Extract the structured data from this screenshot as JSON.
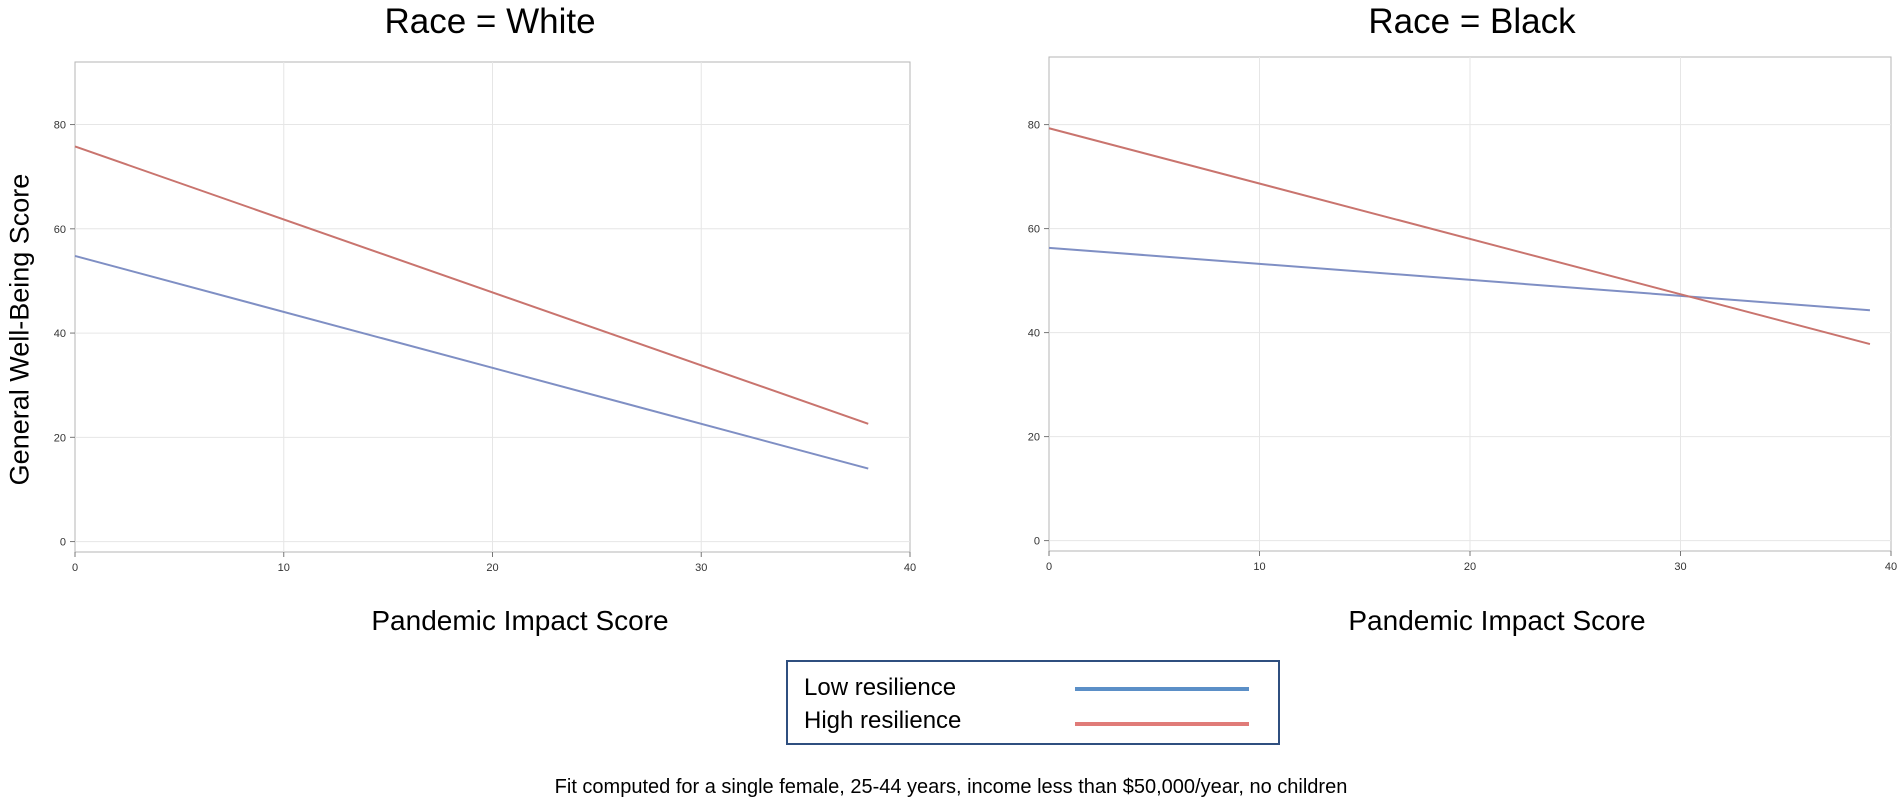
{
  "chart_data": [
    {
      "type": "line",
      "title": "Race = White",
      "xlabel": "Pandemic Impact Score",
      "ylabel": "General Well-Being Score",
      "xlim": [
        0,
        40
      ],
      "ylim": [
        -2,
        92
      ],
      "xticks": [
        0,
        10,
        20,
        30,
        40
      ],
      "yticks": [
        0,
        20,
        40,
        60,
        80
      ],
      "grid": true,
      "series": [
        {
          "name": "Low resilience",
          "color": "#7f8fc4",
          "x": [
            0,
            38
          ],
          "y": [
            54.8,
            14
          ]
        },
        {
          "name": "High resilience",
          "color": "#c9746e",
          "x": [
            0,
            38
          ],
          "y": [
            75.8,
            22.6
          ]
        }
      ]
    },
    {
      "type": "line",
      "title": "Race = Black",
      "xlabel": "Pandemic Impact Score",
      "ylabel": "",
      "xlim": [
        0,
        40
      ],
      "ylim": [
        -2,
        93
      ],
      "xticks": [
        0,
        10,
        20,
        30,
        40
      ],
      "yticks": [
        0,
        20,
        40,
        60,
        80
      ],
      "grid": true,
      "series": [
        {
          "name": "Low resilience",
          "color": "#7f8fc4",
          "x": [
            0,
            39
          ],
          "y": [
            56.3,
            44.3
          ]
        },
        {
          "name": "High resilience",
          "color": "#c9746e",
          "x": [
            0,
            39
          ],
          "y": [
            79.3,
            37.8
          ]
        }
      ]
    }
  ],
  "legend": {
    "items": [
      {
        "label": "Low resilience",
        "color": "#5b8fc7"
      },
      {
        "label": "High resilience",
        "color": "#e07b78"
      }
    ]
  },
  "footnote": "Fit computed for a single female, 25-44 years, income less than $50,000/year, no children"
}
